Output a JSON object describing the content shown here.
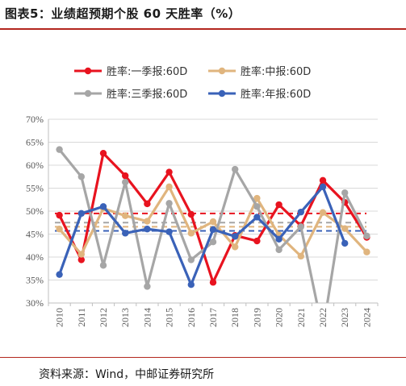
{
  "title": "图表5：业绩超预期个股 60 天胜率（%）",
  "source": "资料来源：Wind，中邮证券研究所",
  "chart_data": {
    "type": "line",
    "x": [
      "2010",
      "2011",
      "2012",
      "2013",
      "2014",
      "2015",
      "2016",
      "2017",
      "2018",
      "2019",
      "2020",
      "2021",
      "2022",
      "2023",
      "2024"
    ],
    "ylim": [
      0.3,
      0.7
    ],
    "yticks": [
      "30%",
      "35%",
      "40%",
      "45%",
      "50%",
      "55%",
      "60%",
      "65%",
      "70%"
    ],
    "legend_position": "top",
    "series": [
      {
        "name": "胜率:一季报:60D",
        "color": "#e8131f",
        "avg": 0.495,
        "values": [
          0.491,
          0.394,
          0.626,
          0.577,
          0.516,
          0.585,
          0.493,
          0.345,
          0.447,
          0.435,
          0.514,
          0.468,
          0.567,
          0.519,
          0.443
        ]
      },
      {
        "name": "胜率:中报:60D",
        "color": "#e0b57e",
        "avg": 0.466,
        "values": [
          0.461,
          0.406,
          0.506,
          0.49,
          0.478,
          0.553,
          0.452,
          0.477,
          0.422,
          0.528,
          0.448,
          0.402,
          0.497,
          0.462,
          0.411
        ]
      },
      {
        "name": "胜率:三季报:60D",
        "color": "#a6a6a6",
        "avg": 0.475,
        "values": [
          0.634,
          0.575,
          0.382,
          0.563,
          0.336,
          0.517,
          0.394,
          0.433,
          0.591,
          0.51,
          0.416,
          0.466,
          0.238,
          0.54,
          0.446
        ]
      },
      {
        "name": "胜率:年报:60D",
        "color": "#3a62b8",
        "avg": 0.457,
        "values": [
          0.362,
          0.495,
          0.51,
          0.452,
          0.461,
          0.455,
          0.34,
          0.46,
          0.445,
          0.487,
          0.439,
          0.498,
          0.553,
          0.43,
          null
        ]
      }
    ]
  }
}
